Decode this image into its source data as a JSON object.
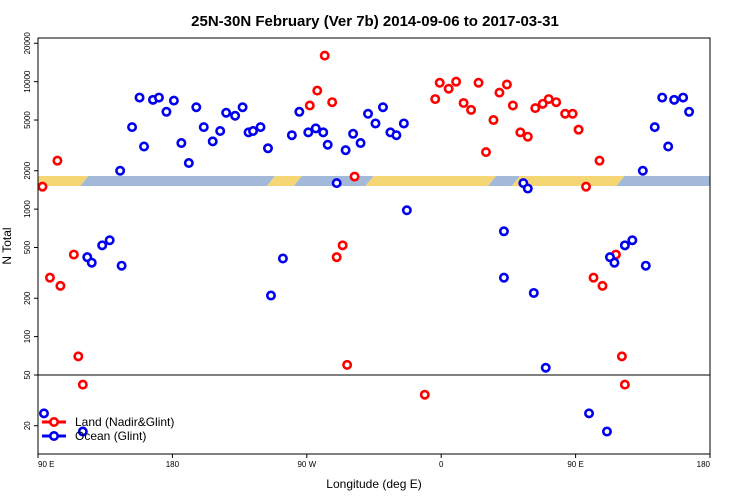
{
  "colors": {
    "land": "#ff0000",
    "ocean": "#0000ee",
    "band_ocean": "#a3b9d9",
    "band_land": "#f4d774",
    "frame": "#000000"
  },
  "chart_data": {
    "type": "scatter",
    "title": "25N-30N February (Ver 7b)   2014-09-06 to 2017-03-31",
    "xlabel": "Longitude (deg E)",
    "ylabel": "N Total",
    "x_tick_labels": [
      "90 E",
      "180",
      "90 W",
      "0",
      "90 E",
      "180"
    ],
    "x_ticks": [
      90,
      180,
      270,
      360,
      450,
      540
    ],
    "xlim": [
      90,
      540
    ],
    "y_scale": "log",
    "ylim": [
      12,
      22000
    ],
    "y_ticks": [
      20,
      50,
      100,
      200,
      500,
      1000,
      2000,
      5000,
      10000,
      20000
    ],
    "y_tick_labels": [
      "20",
      "50",
      "100",
      "200",
      "500",
      "1000",
      "2000",
      "5000",
      "10000",
      "20000"
    ],
    "reference_line_y": 50,
    "legend_position": "bottom-left",
    "legend": [
      "Land (Nadir&Glint)",
      "Ocean (Glint)"
    ],
    "series": [
      {
        "name": "Land (Nadir&Glint)",
        "points": [
          [
            93,
            1500
          ],
          [
            98,
            290
          ],
          [
            103,
            2400
          ],
          [
            105,
            250
          ],
          [
            114,
            440
          ],
          [
            117,
            70
          ],
          [
            120,
            42
          ],
          [
            272,
            6500
          ],
          [
            277,
            8500
          ],
          [
            282,
            16000
          ],
          [
            287,
            6900
          ],
          [
            290,
            420
          ],
          [
            294,
            520
          ],
          [
            297,
            60
          ],
          [
            302,
            1800
          ],
          [
            349,
            35
          ],
          [
            356,
            7300
          ],
          [
            359,
            9800
          ],
          [
            365,
            8800
          ],
          [
            370,
            10000
          ],
          [
            375,
            6800
          ],
          [
            380,
            6000
          ],
          [
            385,
            9800
          ],
          [
            390,
            2800
          ],
          [
            395,
            5000
          ],
          [
            399,
            8200
          ],
          [
            404,
            9500
          ],
          [
            408,
            6500
          ],
          [
            413,
            4000
          ],
          [
            418,
            3700
          ],
          [
            423,
            6200
          ],
          [
            428,
            6700
          ],
          [
            432,
            7300
          ],
          [
            437,
            6900
          ],
          [
            443,
            5600
          ],
          [
            448,
            5600
          ],
          [
            452,
            4200
          ],
          [
            457,
            1500
          ],
          [
            462,
            290
          ],
          [
            466,
            2400
          ],
          [
            468,
            250
          ],
          [
            477,
            440
          ],
          [
            481,
            70
          ],
          [
            483,
            42
          ]
        ]
      },
      {
        "name": "Ocean (Glint)",
        "points": [
          [
            94,
            25
          ],
          [
            120,
            18
          ],
          [
            123,
            420
          ],
          [
            126,
            380
          ],
          [
            133,
            520
          ],
          [
            138,
            570
          ],
          [
            145,
            2000
          ],
          [
            146,
            360
          ],
          [
            153,
            4400
          ],
          [
            158,
            7500
          ],
          [
            161,
            3100
          ],
          [
            167,
            7200
          ],
          [
            171,
            7500
          ],
          [
            176,
            5800
          ],
          [
            181,
            7100
          ],
          [
            186,
            3300
          ],
          [
            191,
            2300
          ],
          [
            196,
            6300
          ],
          [
            201,
            4400
          ],
          [
            207,
            3400
          ],
          [
            212,
            4100
          ],
          [
            216,
            5700
          ],
          [
            222,
            5400
          ],
          [
            227,
            6300
          ],
          [
            231,
            4000
          ],
          [
            234,
            4100
          ],
          [
            239,
            4400
          ],
          [
            244,
            3000
          ],
          [
            246,
            210
          ],
          [
            254,
            410
          ],
          [
            260,
            3800
          ],
          [
            265,
            5800
          ],
          [
            271,
            4000
          ],
          [
            276,
            4300
          ],
          [
            281,
            4000
          ],
          [
            284,
            3200
          ],
          [
            290,
            1600
          ],
          [
            296,
            2900
          ],
          [
            301,
            3900
          ],
          [
            306,
            3300
          ],
          [
            311,
            5600
          ],
          [
            316,
            4700
          ],
          [
            321,
            6300
          ],
          [
            326,
            4000
          ],
          [
            330,
            3800
          ],
          [
            335,
            4700
          ],
          [
            337,
            980
          ],
          [
            402,
            290
          ],
          [
            402,
            670
          ],
          [
            415,
            1600
          ],
          [
            418,
            1450
          ],
          [
            422,
            220
          ],
          [
            430,
            57
          ],
          [
            459,
            25
          ],
          [
            471,
            18
          ],
          [
            473,
            420
          ],
          [
            476,
            380
          ],
          [
            483,
            520
          ],
          [
            488,
            570
          ],
          [
            495,
            2000
          ],
          [
            497,
            360
          ],
          [
            503,
            4400
          ],
          [
            508,
            7500
          ],
          [
            512,
            3100
          ],
          [
            516,
            7200
          ],
          [
            522,
            7500
          ],
          [
            526,
            5800
          ]
        ]
      }
    ]
  },
  "band": {
    "segments_start_lon": 90,
    "segments_kind": [
      "land",
      "ocean",
      "land",
      "ocean",
      "land",
      "ocean",
      "land",
      "ocean"
    ],
    "segments_end_lon": [
      121,
      246,
      264,
      312,
      394,
      410,
      480,
      540
    ]
  }
}
